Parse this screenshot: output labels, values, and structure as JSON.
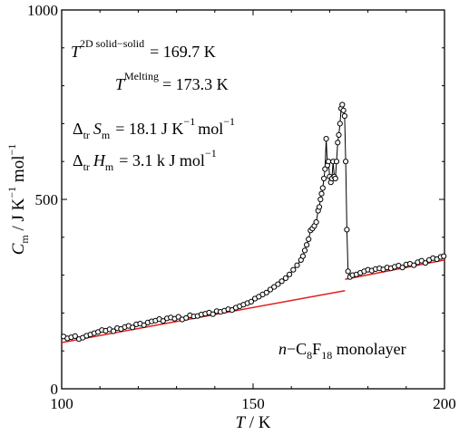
{
  "chart_data": {
    "type": "scatter",
    "xlabel": {
      "main": "T",
      "unit": " / K"
    },
    "ylabel": {
      "main": "C",
      "sub": "m",
      "unit": " / J K",
      "unit_sup": "−1",
      "unit2": " mol",
      "unit2_sup": "−1"
    },
    "xlim": [
      100,
      200
    ],
    "ylim": [
      0,
      1000
    ],
    "x_ticks": [
      100,
      150,
      200
    ],
    "x_tick_labels": [
      "100",
      "150",
      "200"
    ],
    "y_ticks": [
      0,
      500,
      1000
    ],
    "y_tick_labels": [
      "0",
      "500",
      "1000"
    ],
    "grid": false,
    "annotations": [
      {
        "key": "t2d",
        "base": "T",
        "sup": "2D solid−solid",
        "rest": "=  169.7 K"
      },
      {
        "key": "tmelt",
        "base": "T",
        "sup": "Melting",
        "rest": "= 173.3 K"
      },
      {
        "key": "dS",
        "pre": "Δ",
        "pre_sub": "tr",
        "base": "S",
        "sub": "m",
        "rest": "= 18.1 J K",
        "rest_sup": "−1",
        "rest2": "mol",
        "rest2_sup": "−1"
      },
      {
        "key": "dH",
        "pre": "Δ",
        "pre_sub": "tr",
        "base": "H",
        "sub": "m",
        "rest": "= 3.1 k J mol",
        "rest_sup": "−1"
      },
      {
        "key": "sample",
        "italic": "n",
        "text1": "−C",
        "sub1": "8",
        "text2": "F",
        "sub2": "18",
        "text3": " monolayer"
      }
    ],
    "series": [
      {
        "style": "markers-line",
        "color": "#000000",
        "x": [
          100.5,
          101.5,
          102.5,
          103.5,
          104.5,
          105.5,
          106.5,
          107.5,
          108.5,
          109.5,
          110.5,
          111.5,
          112.5,
          113.5,
          114.5,
          115.5,
          116.5,
          117.5,
          118.5,
          119.5,
          120.5,
          121.5,
          122.5,
          123.5,
          124.5,
          125.5,
          126.5,
          127.5,
          128.5,
          129.5,
          130.5,
          131.5,
          132.5,
          133.5,
          134.5,
          135.5,
          136.5,
          137.5,
          138.5,
          139.5,
          140.5,
          141.5,
          142.5,
          143.5,
          144.5,
          145.5,
          146.5,
          147.5,
          148.5,
          149.5,
          150.5,
          151.5,
          152.5,
          153.5,
          154.5,
          155.5,
          156.5,
          157.5,
          158.5,
          159.5,
          160.5,
          161.5,
          162.5,
          163.0,
          163.5,
          164.0,
          164.5,
          165.0,
          165.5,
          166.0,
          166.5,
          167.0,
          167.3,
          167.6,
          167.9,
          168.2,
          168.5,
          168.8,
          169.1,
          169.4,
          169.7,
          170.0,
          170.3,
          170.6,
          170.9,
          171.2,
          171.5,
          171.8,
          172.1,
          172.4,
          172.7,
          173.0,
          173.3,
          173.6,
          173.9,
          174.2,
          174.5,
          174.8,
          175.3,
          176.0,
          177.0,
          178.0,
          179.0,
          180.0,
          181.0,
          182.0,
          183.0,
          184.0,
          185.0,
          186.0,
          187.0,
          188.0,
          189.0,
          190.0,
          191.0,
          192.0,
          193.0,
          194.0,
          195.0,
          196.0,
          197.0,
          198.0,
          199.0,
          199.8
        ],
        "y": [
          138,
          133,
          136,
          139,
          131,
          135,
          140,
          143,
          147,
          150,
          155,
          153,
          157,
          152,
          160,
          158,
          163,
          166,
          162,
          170,
          172,
          168,
          175,
          178,
          180,
          184,
          179,
          186,
          188,
          185,
          190,
          183,
          187,
          194,
          191,
          192,
          196,
          198,
          201,
          197,
          205,
          203,
          206,
          210,
          208,
          214,
          218,
          222,
          226,
          230,
          238,
          243,
          249,
          254,
          262,
          269,
          276,
          284,
          292,
          302,
          314,
          326,
          340,
          350,
          365,
          380,
          395,
          418,
          423,
          430,
          440,
          470,
          480,
          500,
          515,
          530,
          555,
          580,
          660,
          590,
          600,
          560,
          545,
          555,
          600,
          560,
          555,
          600,
          650,
          670,
          700,
          740,
          750,
          735,
          720,
          600,
          420,
          310,
          295,
          300,
          302,
          306,
          310,
          314,
          312,
          316,
          318,
          315,
          320,
          318,
          322,
          325,
          320,
          328,
          330,
          326,
          334,
          338,
          332,
          340,
          345,
          342,
          348,
          350
        ],
        "note": "measured heat capacity (open circles joined by line)"
      },
      {
        "style": "line",
        "color": "#e02020",
        "x": [
          100,
          174
        ],
        "y": [
          122,
          259
        ],
        "note": "baseline below transition"
      },
      {
        "style": "line",
        "color": "#e02020",
        "x": [
          174,
          200
        ],
        "y": [
          289,
          340
        ],
        "note": "baseline above transition"
      }
    ]
  }
}
